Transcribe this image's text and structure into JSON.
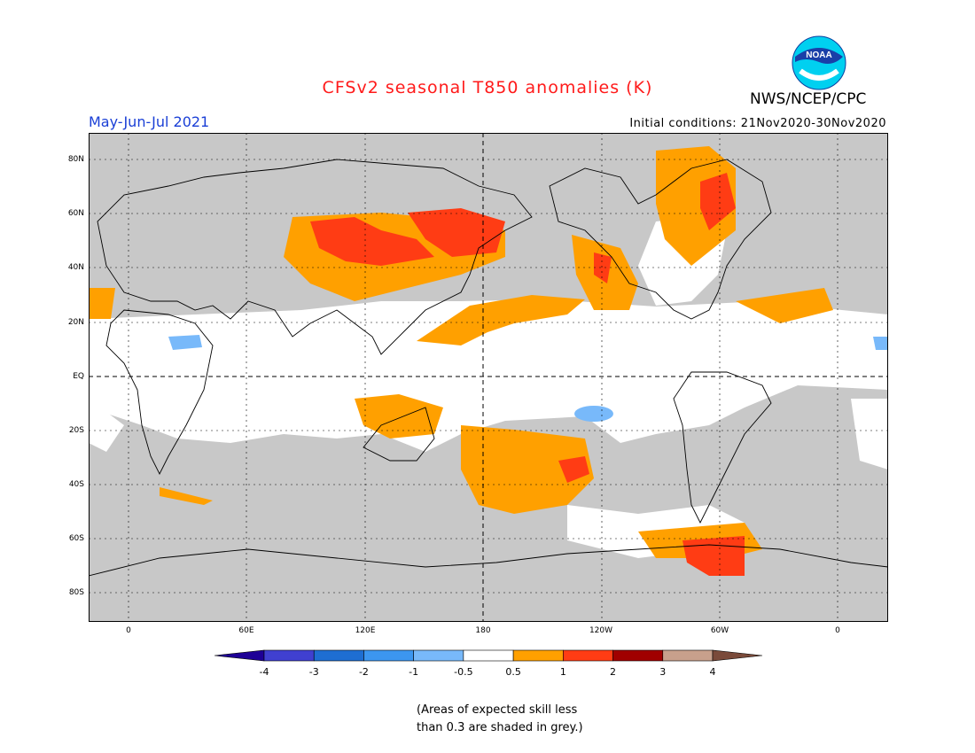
{
  "header": {
    "title": "CFSv2 seasonal T850 anomalies (K)",
    "agency": "NWS/NCEP/CPC",
    "logo_text": "NOAA",
    "period": "May-Jun-Jul 2021",
    "initial_conditions": "Initial conditions: 21Nov2020-30Nov2020"
  },
  "map": {
    "lat_labels": [
      "80N",
      "60N",
      "40N",
      "20N",
      "EQ",
      "20S",
      "40S",
      "60S",
      "80S"
    ],
    "lon_labels": [
      "0",
      "60E",
      "120E",
      "180",
      "120W",
      "60W",
      "0"
    ],
    "land_color": "#c8c8c8",
    "ocean_color": "#c8c8c8"
  },
  "colorbar": {
    "labels": [
      "-4",
      "-3",
      "-2",
      "-1",
      "-0.5",
      "0.5",
      "1",
      "2",
      "3",
      "4"
    ],
    "colors": [
      "#1e0096",
      "#4040d0",
      "#1e6ed2",
      "#3c96f0",
      "#78b9fa",
      "#ffffff",
      "#ffa000",
      "#ff3c14",
      "#a00000",
      "#c8a08c",
      "#7a4a3a"
    ]
  },
  "note": {
    "line1": "(Areas of expected skill less",
    "line2": "than 0.3 are shaded in grey.)"
  }
}
